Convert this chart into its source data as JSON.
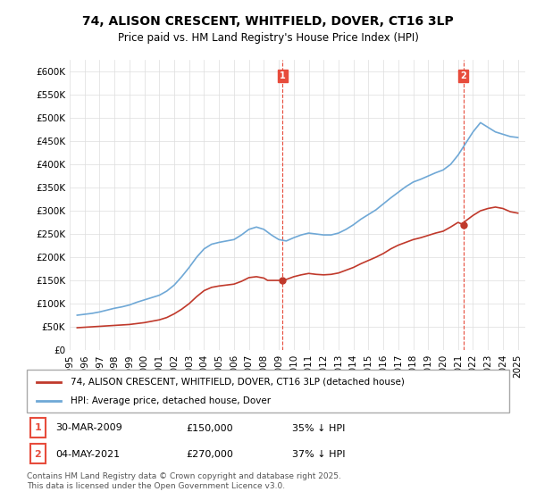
{
  "title": "74, ALISON CRESCENT, WHITFIELD, DOVER, CT16 3LP",
  "subtitle": "Price paid vs. HM Land Registry's House Price Index (HPI)",
  "xlim_start": 1995.0,
  "xlim_end": 2025.5,
  "ylim": [
    0,
    625000
  ],
  "yticks": [
    0,
    50000,
    100000,
    150000,
    200000,
    250000,
    300000,
    350000,
    400000,
    450000,
    500000,
    550000,
    600000
  ],
  "ytick_labels": [
    "£0",
    "£50K",
    "£100K",
    "£150K",
    "£200K",
    "£250K",
    "£300K",
    "£350K",
    "£400K",
    "£450K",
    "£500K",
    "£550K",
    "£600K"
  ],
  "xticks": [
    1995,
    1996,
    1997,
    1998,
    1999,
    2000,
    2001,
    2002,
    2003,
    2004,
    2005,
    2006,
    2007,
    2008,
    2009,
    2010,
    2011,
    2012,
    2013,
    2014,
    2015,
    2016,
    2017,
    2018,
    2019,
    2020,
    2021,
    2022,
    2023,
    2024,
    2025
  ],
  "hpi_color": "#6fa8d6",
  "property_color": "#c0392b",
  "vline1_x": 2009.25,
  "vline2_x": 2021.35,
  "vline_color": "#e74c3c",
  "marker1_label": "1",
  "marker2_label": "2",
  "annotation1": {
    "date": "30-MAR-2009",
    "price": "£150,000",
    "info": "35% ↓ HPI"
  },
  "annotation2": {
    "date": "04-MAY-2021",
    "price": "£270,000",
    "info": "37% ↓ HPI"
  },
  "legend_property": "74, ALISON CRESCENT, WHITFIELD, DOVER, CT16 3LP (detached house)",
  "legend_hpi": "HPI: Average price, detached house, Dover",
  "footer": "Contains HM Land Registry data © Crown copyright and database right 2025.\nThis data is licensed under the Open Government Licence v3.0.",
  "hpi_data": {
    "years": [
      1995.5,
      1996.0,
      1996.5,
      1997.0,
      1997.5,
      1998.0,
      1998.5,
      1999.0,
      1999.5,
      2000.0,
      2000.5,
      2001.0,
      2001.5,
      2002.0,
      2002.5,
      2003.0,
      2003.5,
      2004.0,
      2004.5,
      2005.0,
      2005.5,
      2006.0,
      2006.5,
      2007.0,
      2007.5,
      2008.0,
      2008.5,
      2009.0,
      2009.5,
      2010.0,
      2010.5,
      2011.0,
      2011.5,
      2012.0,
      2012.5,
      2013.0,
      2013.5,
      2014.0,
      2014.5,
      2015.0,
      2015.5,
      2016.0,
      2016.5,
      2017.0,
      2017.5,
      2018.0,
      2018.5,
      2019.0,
      2019.5,
      2020.0,
      2020.5,
      2021.0,
      2021.5,
      2022.0,
      2022.5,
      2023.0,
      2023.5,
      2024.0,
      2024.5,
      2025.0
    ],
    "values": [
      75000,
      77000,
      79000,
      82000,
      86000,
      90000,
      93000,
      97000,
      103000,
      108000,
      113000,
      118000,
      127000,
      140000,
      158000,
      178000,
      200000,
      218000,
      228000,
      232000,
      235000,
      238000,
      248000,
      260000,
      265000,
      260000,
      248000,
      238000,
      235000,
      242000,
      248000,
      252000,
      250000,
      248000,
      248000,
      252000,
      260000,
      270000,
      282000,
      292000,
      302000,
      315000,
      328000,
      340000,
      352000,
      362000,
      368000,
      375000,
      382000,
      388000,
      400000,
      420000,
      445000,
      470000,
      490000,
      480000,
      470000,
      465000,
      460000,
      458000
    ]
  },
  "property_data": {
    "years": [
      1995.5,
      1996.0,
      1996.5,
      1997.0,
      1997.5,
      1998.0,
      1998.5,
      1999.0,
      1999.5,
      2000.0,
      2000.5,
      2001.0,
      2001.5,
      2002.0,
      2002.5,
      2003.0,
      2003.5,
      2004.0,
      2004.5,
      2005.0,
      2005.5,
      2006.0,
      2006.5,
      2007.0,
      2007.5,
      2008.0,
      2008.25,
      2009.25,
      2009.5,
      2010.0,
      2010.5,
      2011.0,
      2011.5,
      2012.0,
      2012.5,
      2013.0,
      2013.5,
      2014.0,
      2014.5,
      2015.0,
      2015.5,
      2016.0,
      2016.5,
      2017.0,
      2017.5,
      2018.0,
      2018.5,
      2019.0,
      2019.5,
      2020.0,
      2020.5,
      2021.0,
      2021.35,
      2021.5,
      2022.0,
      2022.5,
      2023.0,
      2023.5,
      2024.0,
      2024.5,
      2025.0
    ],
    "values": [
      48000,
      49000,
      50000,
      51000,
      52000,
      53000,
      54000,
      55000,
      57000,
      59000,
      62000,
      65000,
      70000,
      78000,
      88000,
      100000,
      115000,
      128000,
      135000,
      138000,
      140000,
      142000,
      148000,
      156000,
      158000,
      155000,
      150000,
      150000,
      152000,
      158000,
      162000,
      165000,
      163000,
      162000,
      163000,
      166000,
      172000,
      178000,
      186000,
      193000,
      200000,
      208000,
      218000,
      226000,
      232000,
      238000,
      242000,
      247000,
      252000,
      256000,
      265000,
      275000,
      270000,
      278000,
      290000,
      300000,
      305000,
      308000,
      305000,
      298000,
      295000
    ]
  }
}
